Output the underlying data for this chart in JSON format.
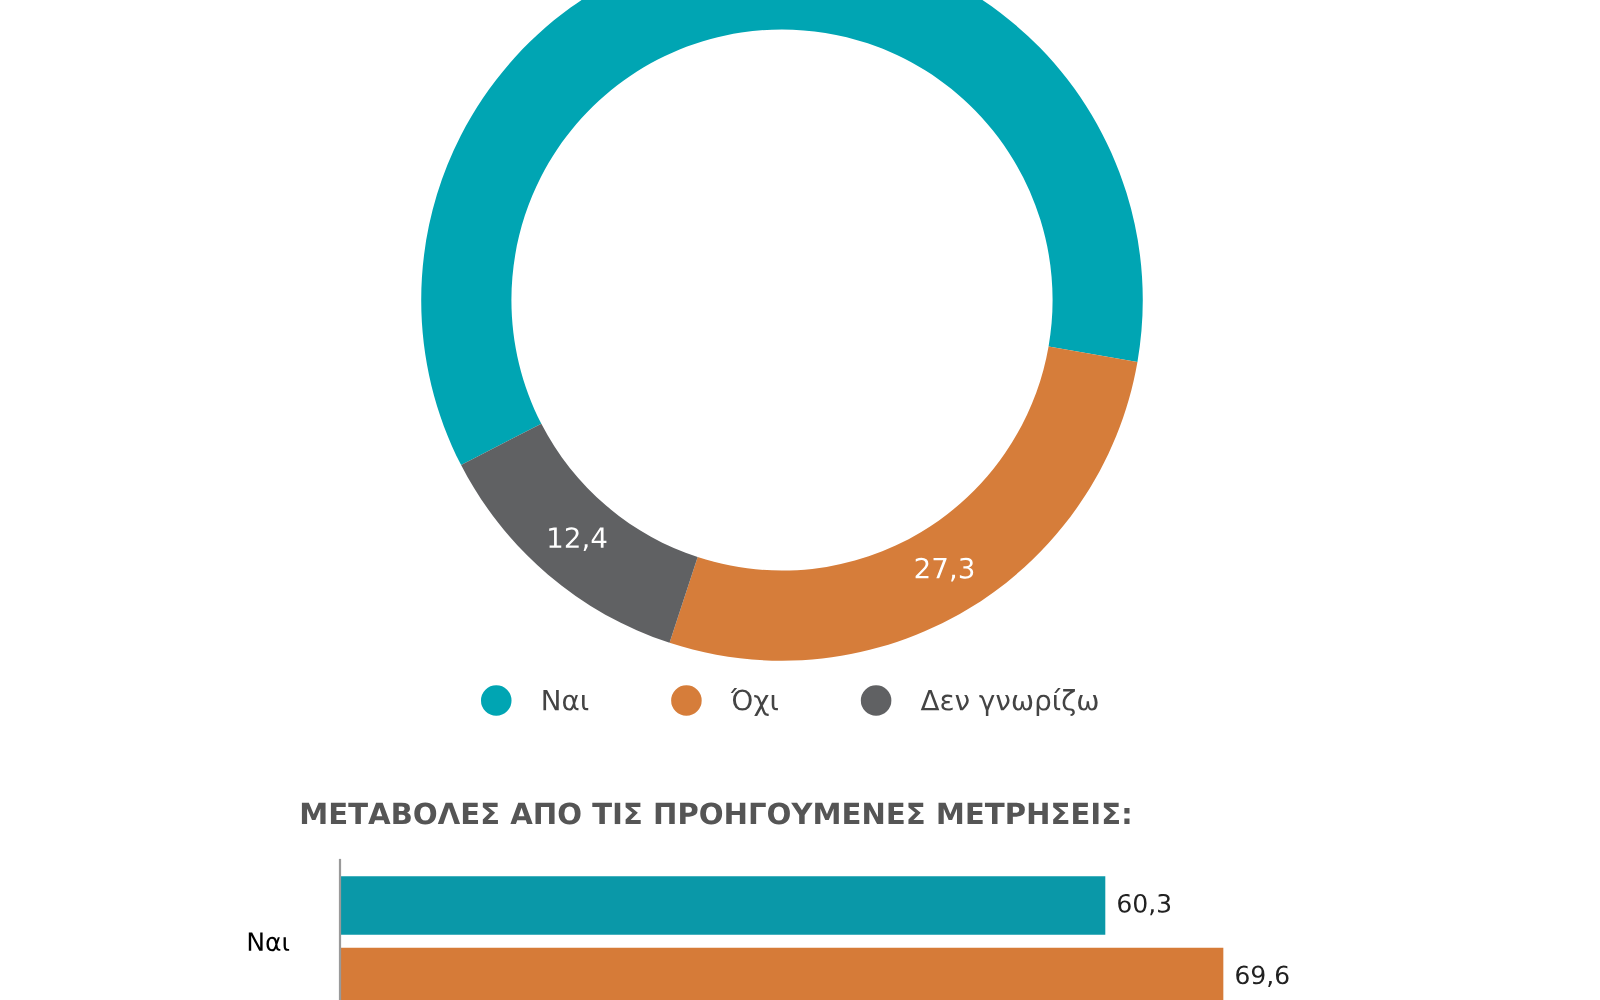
{
  "chart_data": [
    {
      "type": "donut",
      "categories": [
        "Ναι",
        "Όχι",
        "Δεν γνωρίζω"
      ],
      "values": [
        60.3,
        27.3,
        12.4
      ],
      "colors": [
        "#00a5b3",
        "#d67d3a",
        "#606163"
      ],
      "value_labels": [
        null,
        "27,3",
        "12,4"
      ],
      "legend": "bottom"
    },
    {
      "type": "bar",
      "orientation": "horizontal",
      "title": "ΜΕΤΑΒΟΛΕΣ ΑΠΟ ΤΙΣ ΠΡΟΗΓΟΥΜΕΝΕΣ ΜΕΤΡΗΣΕΙΣ:",
      "categories": [
        "Ναι"
      ],
      "series": [
        {
          "color": "#0a98a8",
          "values": [
            60.3
          ],
          "value_labels": [
            "60,3"
          ]
        },
        {
          "color": "#d67b38",
          "values": [
            69.6
          ],
          "value_labels": [
            "69,6"
          ]
        }
      ]
    }
  ]
}
